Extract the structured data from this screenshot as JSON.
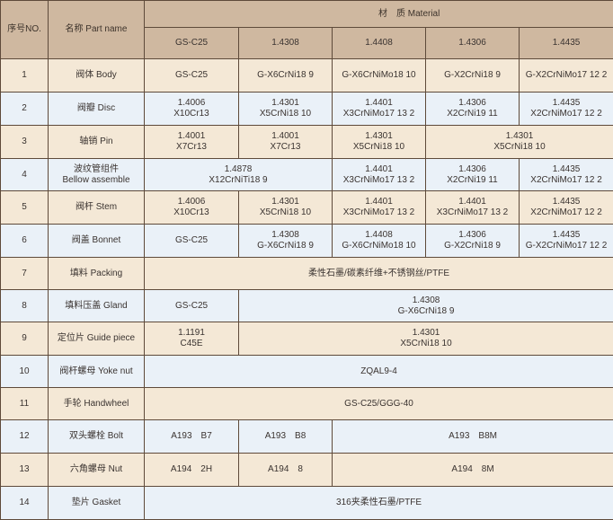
{
  "header": {
    "no": "序号NO.",
    "name": "名称 Part name",
    "material": "材　质 Material",
    "grades": [
      "GS-C25",
      "1.4308",
      "1.4408",
      "1.4306",
      "1.4435"
    ]
  },
  "colors": {
    "header": "#cfb8a0",
    "row_beige": "#f4e8d6",
    "row_blue": "#eaf1f8",
    "border": "#5e4a3a"
  },
  "rows": [
    {
      "no": "1",
      "name": [
        "阀体 Body"
      ],
      "cells": [
        {
          "lines": [
            "GS-C25"
          ],
          "span": 1
        },
        {
          "lines": [
            "G-X6CrNi18 9"
          ],
          "span": 1
        },
        {
          "lines": [
            "G-X6CrNiMo18 10"
          ],
          "span": 1
        },
        {
          "lines": [
            "G-X2CrNi18 9"
          ],
          "span": 1
        },
        {
          "lines": [
            "G-X2CrNiMo17 12 2"
          ],
          "span": 1
        }
      ]
    },
    {
      "no": "2",
      "name": [
        "阀瓣 Disc"
      ],
      "cells": [
        {
          "lines": [
            "1.4006",
            "X10Cr13"
          ],
          "span": 1
        },
        {
          "lines": [
            "1.4301",
            "X5CrNi18 10"
          ],
          "span": 1
        },
        {
          "lines": [
            "1.4401",
            "X3CrNiMo17 13 2"
          ],
          "span": 1
        },
        {
          "lines": [
            "1.4306",
            "X2CrNi19 11"
          ],
          "span": 1
        },
        {
          "lines": [
            "1.4435",
            "X2CrNiMo17 12 2"
          ],
          "span": 1
        }
      ]
    },
    {
      "no": "3",
      "name": [
        "轴销 Pin"
      ],
      "cells": [
        {
          "lines": [
            "1.4001",
            "X7Cr13"
          ],
          "span": 1
        },
        {
          "lines": [
            "1.4001",
            "X7Cr13"
          ],
          "span": 1
        },
        {
          "lines": [
            "1.4301",
            "X5CrNi18 10"
          ],
          "span": 1
        },
        {
          "lines": [
            "1.4301",
            "X5CrNi18 10"
          ],
          "span": 2
        }
      ]
    },
    {
      "no": "4",
      "name": [
        "波纹管组件",
        "Bellow assemble"
      ],
      "cells": [
        {
          "lines": [
            "1.4878",
            "X12CrNiTi18 9"
          ],
          "span": 2
        },
        {
          "lines": [
            "1.4401",
            "X3CrNiMo17 13 2"
          ],
          "span": 1
        },
        {
          "lines": [
            "1.4306",
            "X2CrNi19 11"
          ],
          "span": 1
        },
        {
          "lines": [
            "1.4435",
            "X2CrNiMo17 12 2"
          ],
          "span": 1
        }
      ]
    },
    {
      "no": "5",
      "name": [
        "阀杆 Stem"
      ],
      "cells": [
        {
          "lines": [
            "1.4006",
            "X10Cr13"
          ],
          "span": 1
        },
        {
          "lines": [
            "1.4301",
            "X5CrNi18 10"
          ],
          "span": 1
        },
        {
          "lines": [
            "1.4401",
            "X3CrNiMo17 13 2"
          ],
          "span": 1
        },
        {
          "lines": [
            "1.4401",
            "X3CrNiMo17 13 2"
          ],
          "span": 1
        },
        {
          "lines": [
            "1.4435",
            "X2CrNiMo17 12 2"
          ],
          "span": 1
        }
      ]
    },
    {
      "no": "6",
      "name": [
        "阀盖 Bonnet"
      ],
      "cells": [
        {
          "lines": [
            "GS-C25"
          ],
          "span": 1
        },
        {
          "lines": [
            "1.4308",
            "G-X6CrNi18 9"
          ],
          "span": 1
        },
        {
          "lines": [
            "1.4408",
            "G-X6CrNiMo18 10"
          ],
          "span": 1
        },
        {
          "lines": [
            "1.4306",
            "G-X2CrNi18 9"
          ],
          "span": 1
        },
        {
          "lines": [
            "1.4435",
            "G-X2CrNiMo17 12 2"
          ],
          "span": 1
        }
      ]
    },
    {
      "no": "7",
      "name": [
        "填料 Packing"
      ],
      "cells": [
        {
          "lines": [
            "柔性石墨/碳素纤维+不锈钢丝/PTFE"
          ],
          "span": 5
        }
      ]
    },
    {
      "no": "8",
      "name": [
        "填料压盖 Gland"
      ],
      "cells": [
        {
          "lines": [
            "GS-C25"
          ],
          "span": 1
        },
        {
          "lines": [
            "1.4308",
            "G-X6CrNi18 9"
          ],
          "span": 4
        }
      ]
    },
    {
      "no": "9",
      "name": [
        "定位片 Guide piece"
      ],
      "cells": [
        {
          "lines": [
            "1.1191",
            "C45E"
          ],
          "span": 1
        },
        {
          "lines": [
            "1.4301",
            "X5CrNi18 10"
          ],
          "span": 4
        }
      ]
    },
    {
      "no": "10",
      "name": [
        "阀杆螺母 Yoke nut"
      ],
      "cells": [
        {
          "lines": [
            "ZQAL9-4"
          ],
          "span": 5
        }
      ]
    },
    {
      "no": "11",
      "name": [
        "手轮 Handwheel"
      ],
      "cells": [
        {
          "lines": [
            "GS-C25/GGG-40"
          ],
          "span": 5
        }
      ]
    },
    {
      "no": "12",
      "name": [
        "双头螺栓 Bolt"
      ],
      "cells": [
        {
          "lines": [
            "A193　B7"
          ],
          "span": 1
        },
        {
          "lines": [
            "A193　B8"
          ],
          "span": 1
        },
        {
          "lines": [
            "A193　B8M"
          ],
          "span": 3
        }
      ]
    },
    {
      "no": "13",
      "name": [
        "六角螺母 Nut"
      ],
      "cells": [
        {
          "lines": [
            "A194　2H"
          ],
          "span": 1
        },
        {
          "lines": [
            "A194　8"
          ],
          "span": 1
        },
        {
          "lines": [
            "A194　8M"
          ],
          "span": 3
        }
      ]
    },
    {
      "no": "14",
      "name": [
        "垫片 Gasket"
      ],
      "cells": [
        {
          "lines": [
            "316夹柔性石墨/PTFE"
          ],
          "span": 5
        }
      ]
    }
  ]
}
